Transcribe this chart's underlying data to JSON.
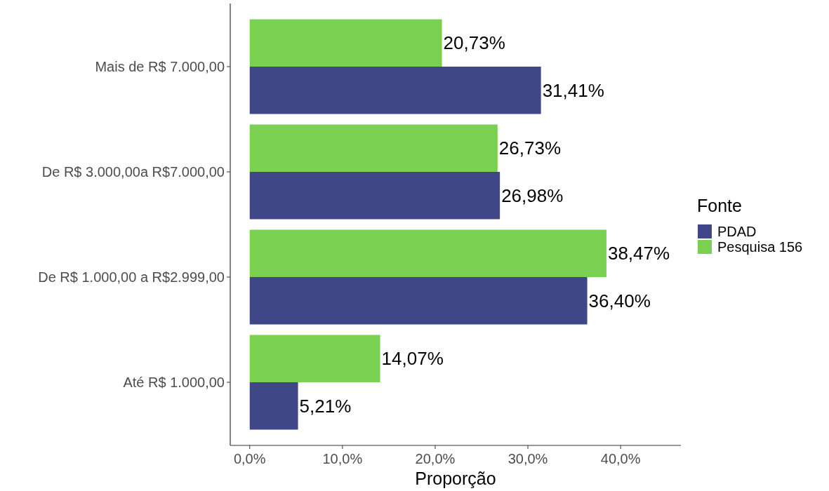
{
  "chart_data": {
    "type": "bar",
    "orientation": "horizontal",
    "xlabel": "Proporção",
    "legend_title": "Fonte",
    "legend": "right",
    "grid": false,
    "categories": [
      "Mais de R$ 7.000,00",
      "De R$ 3.000,00a R$7.000,00",
      "De R$ 1.000,00 a R$2.999,00",
      "Até R$ 1.000,00"
    ],
    "series": [
      {
        "name": "PDAD",
        "color": "#404788",
        "values": [
          31.41,
          26.98,
          36.4,
          5.21
        ],
        "value_labels": [
          "31,41%",
          "26,98%",
          "36,40%",
          "5,21%"
        ]
      },
      {
        "name": "Pesquisa 156",
        "color": "#7ad151",
        "values": [
          20.73,
          26.73,
          38.47,
          14.07
        ],
        "value_labels": [
          "20,73%",
          "26,73%",
          "38,47%",
          "14,07%"
        ]
      }
    ],
    "xlim": [
      -2.1,
      46.5
    ],
    "xticks": [
      {
        "value": 0,
        "label": "0,0%"
      },
      {
        "value": 10,
        "label": "10,0%"
      },
      {
        "value": 20,
        "label": "20,0%"
      },
      {
        "value": 30,
        "label": "30,0%"
      },
      {
        "value": 40,
        "label": "40,0%"
      }
    ]
  }
}
